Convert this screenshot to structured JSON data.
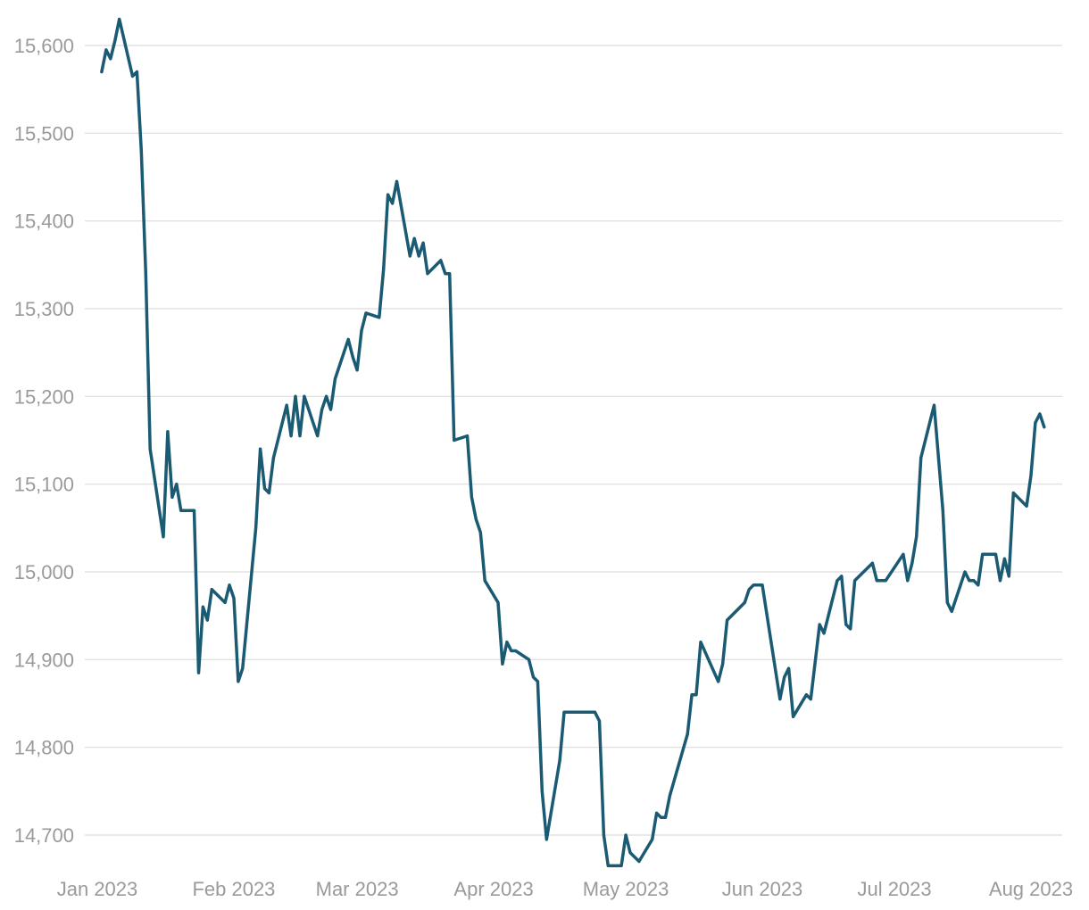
{
  "chart_data": {
    "type": "line",
    "title": "",
    "xlabel": "",
    "ylabel": "",
    "grid": true,
    "legend": "none",
    "line_color": "#1a5a72",
    "grid_color": "#dcdcdc",
    "text_color": "#9a9a9a",
    "xlim": [
      "2023-01-01",
      "2023-08-05"
    ],
    "ylim": [
      14670,
      15640
    ],
    "y_ticks": [
      {
        "value": 14700,
        "label": "14,700"
      },
      {
        "value": 14800,
        "label": "14,800"
      },
      {
        "value": 14900,
        "label": "14,900"
      },
      {
        "value": 15000,
        "label": "15,000"
      },
      {
        "value": 15100,
        "label": "15,100"
      },
      {
        "value": 15200,
        "label": "15,200"
      },
      {
        "value": 15300,
        "label": "15,300"
      },
      {
        "value": 15400,
        "label": "15,400"
      },
      {
        "value": 15500,
        "label": "15,500"
      },
      {
        "value": 15600,
        "label": "15,600"
      }
    ],
    "x_ticks": [
      {
        "value": "2023-01-01",
        "label": "Jan 2023"
      },
      {
        "value": "2023-02-01",
        "label": "Feb 2023"
      },
      {
        "value": "2023-03-01",
        "label": "Mar 2023"
      },
      {
        "value": "2023-04-01",
        "label": "Apr 2023"
      },
      {
        "value": "2023-05-01",
        "label": "May 2023"
      },
      {
        "value": "2023-06-01",
        "label": "Jun 2023"
      },
      {
        "value": "2023-07-01",
        "label": "Jul 2023"
      },
      {
        "value": "2023-08-01",
        "label": "Aug 2023"
      }
    ],
    "series": [
      {
        "points": [
          [
            "2023-01-02",
            15570
          ],
          [
            "2023-01-03",
            15595
          ],
          [
            "2023-01-04",
            15585
          ],
          [
            "2023-01-05",
            15605
          ],
          [
            "2023-01-06",
            15630
          ],
          [
            "2023-01-09",
            15565
          ],
          [
            "2023-01-10",
            15570
          ],
          [
            "2023-01-11",
            15480
          ],
          [
            "2023-01-12",
            15340
          ],
          [
            "2023-01-13",
            15140
          ],
          [
            "2023-01-16",
            15040
          ],
          [
            "2023-01-17",
            15160
          ],
          [
            "2023-01-18",
            15085
          ],
          [
            "2023-01-19",
            15100
          ],
          [
            "2023-01-20",
            15070
          ],
          [
            "2023-01-23",
            15070
          ],
          [
            "2023-01-24",
            14885
          ],
          [
            "2023-01-25",
            14960
          ],
          [
            "2023-01-26",
            14945
          ],
          [
            "2023-01-27",
            14980
          ],
          [
            "2023-01-30",
            14965
          ],
          [
            "2023-01-31",
            14985
          ],
          [
            "2023-02-01",
            14970
          ],
          [
            "2023-02-02",
            14875
          ],
          [
            "2023-02-03",
            14890
          ],
          [
            "2023-02-06",
            15050
          ],
          [
            "2023-02-07",
            15140
          ],
          [
            "2023-02-08",
            15095
          ],
          [
            "2023-02-09",
            15090
          ],
          [
            "2023-02-10",
            15130
          ],
          [
            "2023-02-13",
            15190
          ],
          [
            "2023-02-14",
            15155
          ],
          [
            "2023-02-15",
            15200
          ],
          [
            "2023-02-16",
            15155
          ],
          [
            "2023-02-17",
            15200
          ],
          [
            "2023-02-20",
            15155
          ],
          [
            "2023-02-21",
            15185
          ],
          [
            "2023-02-22",
            15200
          ],
          [
            "2023-02-23",
            15185
          ],
          [
            "2023-02-24",
            15220
          ],
          [
            "2023-02-27",
            15265
          ],
          [
            "2023-02-28",
            15245
          ],
          [
            "2023-03-01",
            15230
          ],
          [
            "2023-03-02",
            15275
          ],
          [
            "2023-03-03",
            15295
          ],
          [
            "2023-03-06",
            15290
          ],
          [
            "2023-03-07",
            15345
          ],
          [
            "2023-03-08",
            15430
          ],
          [
            "2023-03-09",
            15420
          ],
          [
            "2023-03-10",
            15445
          ],
          [
            "2023-03-13",
            15360
          ],
          [
            "2023-03-14",
            15380
          ],
          [
            "2023-03-15",
            15360
          ],
          [
            "2023-03-16",
            15375
          ],
          [
            "2023-03-17",
            15340
          ],
          [
            "2023-03-20",
            15355
          ],
          [
            "2023-03-21",
            15340
          ],
          [
            "2023-03-22",
            15340
          ],
          [
            "2023-03-23",
            15150
          ],
          [
            "2023-03-26",
            15155
          ],
          [
            "2023-03-27",
            15085
          ],
          [
            "2023-03-28",
            15060
          ],
          [
            "2023-03-29",
            15045
          ],
          [
            "2023-03-30",
            14990
          ],
          [
            "2023-04-02",
            14965
          ],
          [
            "2023-04-03",
            14895
          ],
          [
            "2023-04-04",
            14920
          ],
          [
            "2023-04-05",
            14910
          ],
          [
            "2023-04-06",
            14910
          ],
          [
            "2023-04-09",
            14900
          ],
          [
            "2023-04-10",
            14880
          ],
          [
            "2023-04-11",
            14875
          ],
          [
            "2023-04-12",
            14750
          ],
          [
            "2023-04-13",
            14695
          ],
          [
            "2023-04-16",
            14785
          ],
          [
            "2023-04-17",
            14840
          ],
          [
            "2023-04-24",
            14840
          ],
          [
            "2023-04-25",
            14830
          ],
          [
            "2023-04-26",
            14700
          ],
          [
            "2023-04-27",
            14665
          ],
          [
            "2023-04-30",
            14665
          ],
          [
            "2023-05-01",
            14700
          ],
          [
            "2023-05-02",
            14680
          ],
          [
            "2023-05-04",
            14670
          ],
          [
            "2023-05-07",
            14695
          ],
          [
            "2023-05-08",
            14725
          ],
          [
            "2023-05-09",
            14720
          ],
          [
            "2023-05-10",
            14720
          ],
          [
            "2023-05-11",
            14745
          ],
          [
            "2023-05-15",
            14815
          ],
          [
            "2023-05-16",
            14860
          ],
          [
            "2023-05-17",
            14860
          ],
          [
            "2023-05-18",
            14920
          ],
          [
            "2023-05-22",
            14875
          ],
          [
            "2023-05-23",
            14895
          ],
          [
            "2023-05-24",
            14945
          ],
          [
            "2023-05-28",
            14965
          ],
          [
            "2023-05-29",
            14980
          ],
          [
            "2023-05-30",
            14985
          ],
          [
            "2023-06-01",
            14985
          ],
          [
            "2023-06-05",
            14855
          ],
          [
            "2023-06-06",
            14880
          ],
          [
            "2023-06-07",
            14890
          ],
          [
            "2023-06-08",
            14835
          ],
          [
            "2023-06-11",
            14860
          ],
          [
            "2023-06-12",
            14855
          ],
          [
            "2023-06-14",
            14940
          ],
          [
            "2023-06-15",
            14930
          ],
          [
            "2023-06-18",
            14990
          ],
          [
            "2023-06-19",
            14995
          ],
          [
            "2023-06-20",
            14940
          ],
          [
            "2023-06-21",
            14935
          ],
          [
            "2023-06-22",
            14990
          ],
          [
            "2023-06-26",
            15010
          ],
          [
            "2023-06-27",
            14990
          ],
          [
            "2023-06-29",
            14990
          ],
          [
            "2023-07-03",
            15020
          ],
          [
            "2023-07-04",
            14990
          ],
          [
            "2023-07-05",
            15010
          ],
          [
            "2023-07-06",
            15040
          ],
          [
            "2023-07-07",
            15130
          ],
          [
            "2023-07-10",
            15190
          ],
          [
            "2023-07-12",
            15070
          ],
          [
            "2023-07-13",
            14965
          ],
          [
            "2023-07-14",
            14955
          ],
          [
            "2023-07-17",
            15000
          ],
          [
            "2023-07-18",
            14990
          ],
          [
            "2023-07-19",
            14990
          ],
          [
            "2023-07-20",
            14985
          ],
          [
            "2023-07-21",
            15020
          ],
          [
            "2023-07-24",
            15020
          ],
          [
            "2023-07-25",
            14990
          ],
          [
            "2023-07-26",
            15015
          ],
          [
            "2023-07-27",
            14995
          ],
          [
            "2023-07-28",
            15090
          ],
          [
            "2023-07-31",
            15075
          ],
          [
            "2023-08-01",
            15110
          ],
          [
            "2023-08-02",
            15170
          ],
          [
            "2023-08-03",
            15180
          ],
          [
            "2023-08-04",
            15165
          ]
        ]
      }
    ]
  }
}
